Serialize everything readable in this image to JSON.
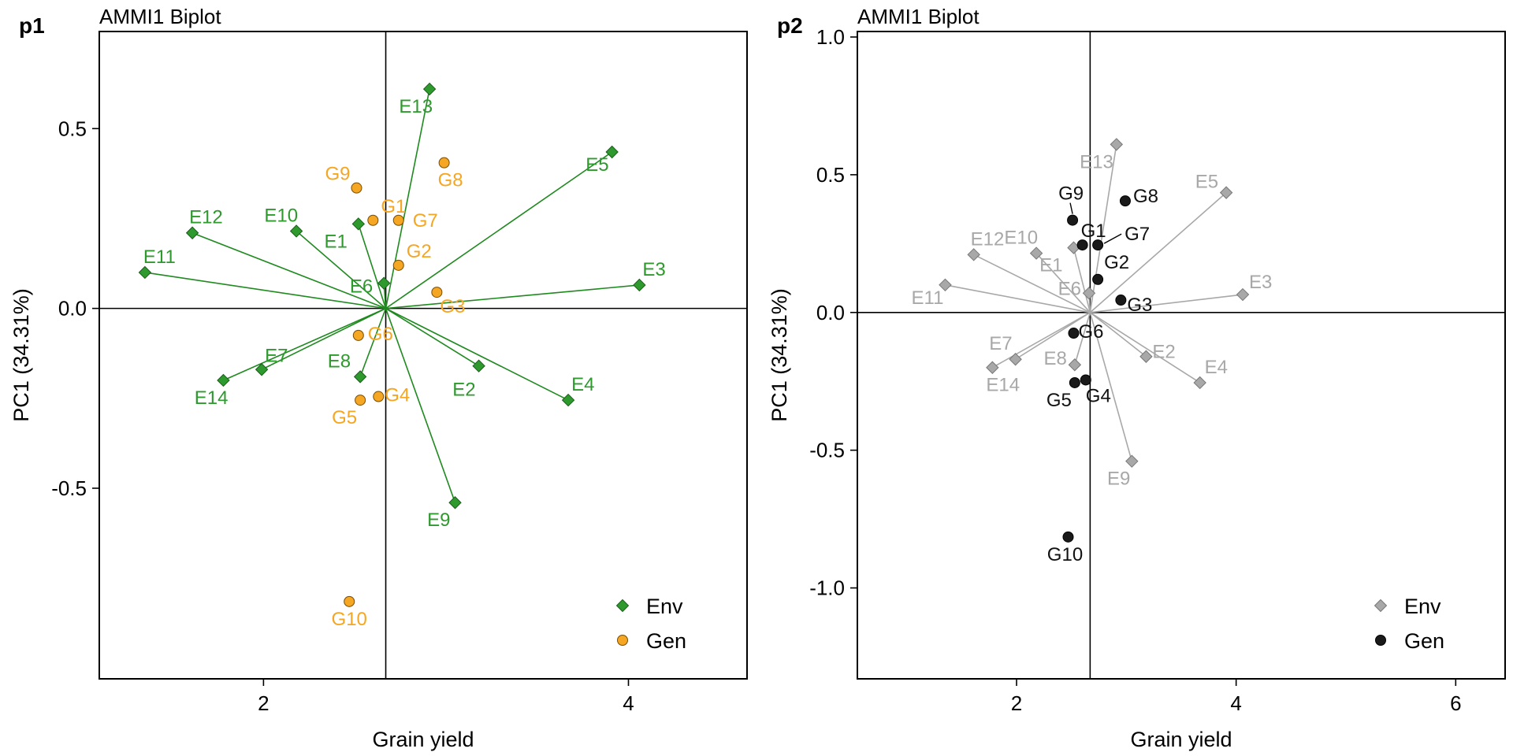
{
  "colors": {
    "p1_env": "#2E9A2E",
    "p1_env_line": "#1F8A1F",
    "p1_gen": "#F5A623",
    "p2_env": "#A8A8A8",
    "p2_env_line": "#A8A8A8",
    "p2_gen": "#1A1A1A",
    "axes": "#000000"
  },
  "panels": [
    {
      "tag": "p1",
      "title": "AMMI1 Biplot",
      "xlabel": "Grain yield",
      "ylabel": "PC1 (34.31%)",
      "legend": [
        "Env",
        "Gen"
      ],
      "legend_position": "bottom-right",
      "xlim": [
        1.1,
        4.65
      ],
      "ylim": [
        -1.03,
        0.77
      ],
      "xticks": [
        2,
        4
      ],
      "yticks": [
        -0.5,
        0.0,
        0.5
      ],
      "ytick_labels": [
        "-0.5",
        "0.0",
        "0.5"
      ],
      "center": [
        2.67,
        0.0
      ],
      "gen_label_color": "gen",
      "env": [
        {
          "label": "E1",
          "x": 2.52,
          "y": 0.235
        },
        {
          "label": "E2",
          "x": 3.18,
          "y": -0.16
        },
        {
          "label": "E3",
          "x": 4.06,
          "y": 0.065
        },
        {
          "label": "E4",
          "x": 3.67,
          "y": -0.255
        },
        {
          "label": "E5",
          "x": 3.91,
          "y": 0.435
        },
        {
          "label": "E6",
          "x": 2.66,
          "y": 0.07
        },
        {
          "label": "E7",
          "x": 1.99,
          "y": -0.17
        },
        {
          "label": "E8",
          "x": 2.53,
          "y": -0.19
        },
        {
          "label": "E9",
          "x": 3.05,
          "y": -0.54
        },
        {
          "label": "E10",
          "x": 2.18,
          "y": 0.215
        },
        {
          "label": "E11",
          "x": 1.35,
          "y": 0.1
        },
        {
          "label": "E12",
          "x": 1.61,
          "y": 0.21
        },
        {
          "label": "E13",
          "x": 2.91,
          "y": 0.61
        },
        {
          "label": "E14",
          "x": 1.78,
          "y": -0.2
        }
      ],
      "gen": [
        {
          "label": "G1",
          "x": 2.6,
          "y": 0.245
        },
        {
          "label": "G2",
          "x": 2.74,
          "y": 0.12
        },
        {
          "label": "G3",
          "x": 2.95,
          "y": 0.045
        },
        {
          "label": "G4",
          "x": 2.63,
          "y": -0.245
        },
        {
          "label": "G5",
          "x": 2.53,
          "y": -0.255
        },
        {
          "label": "G6",
          "x": 2.52,
          "y": -0.075
        },
        {
          "label": "G7",
          "x": 2.74,
          "y": 0.245
        },
        {
          "label": "G8",
          "x": 2.99,
          "y": 0.405
        },
        {
          "label": "G9",
          "x": 2.51,
          "y": 0.335
        },
        {
          "label": "G10",
          "x": 2.47,
          "y": -0.815
        }
      ]
    },
    {
      "tag": "p2",
      "title": "AMMI1 Biplot",
      "xlabel": "Grain yield",
      "ylabel": "PC1 (34.31%)",
      "legend": [
        "Env",
        "Gen"
      ],
      "legend_position": "bottom-right",
      "xlim": [
        0.55,
        6.45
      ],
      "ylim": [
        -1.33,
        1.02
      ],
      "xticks": [
        2,
        4,
        6
      ],
      "yticks": [
        -1.0,
        -0.5,
        0.0,
        0.5,
        1.0
      ],
      "ytick_labels": [
        "-1.0",
        "-0.5",
        "0.0",
        "0.5",
        "1.0"
      ],
      "center": [
        2.67,
        0.0
      ],
      "gen_label_color": "black",
      "env": [
        {
          "label": "E1",
          "x": 2.52,
          "y": 0.235
        },
        {
          "label": "E2",
          "x": 3.18,
          "y": -0.16
        },
        {
          "label": "E3",
          "x": 4.06,
          "y": 0.065
        },
        {
          "label": "E4",
          "x": 3.67,
          "y": -0.255
        },
        {
          "label": "E5",
          "x": 3.91,
          "y": 0.435
        },
        {
          "label": "E6",
          "x": 2.66,
          "y": 0.07
        },
        {
          "label": "E7",
          "x": 1.99,
          "y": -0.17
        },
        {
          "label": "E8",
          "x": 2.53,
          "y": -0.19
        },
        {
          "label": "E9",
          "x": 3.05,
          "y": -0.54
        },
        {
          "label": "E10",
          "x": 2.18,
          "y": 0.215
        },
        {
          "label": "E11",
          "x": 1.35,
          "y": 0.1
        },
        {
          "label": "E12",
          "x": 1.61,
          "y": 0.21
        },
        {
          "label": "E13",
          "x": 2.91,
          "y": 0.61
        },
        {
          "label": "E14",
          "x": 1.78,
          "y": -0.2
        }
      ],
      "gen": [
        {
          "label": "G1",
          "x": 2.6,
          "y": 0.245
        },
        {
          "label": "G2",
          "x": 2.74,
          "y": 0.12
        },
        {
          "label": "G3",
          "x": 2.95,
          "y": 0.045
        },
        {
          "label": "G4",
          "x": 2.63,
          "y": -0.245
        },
        {
          "label": "G5",
          "x": 2.53,
          "y": -0.255
        },
        {
          "label": "G6",
          "x": 2.52,
          "y": -0.075
        },
        {
          "label": "G7",
          "x": 2.74,
          "y": 0.245
        },
        {
          "label": "G8",
          "x": 2.99,
          "y": 0.405
        },
        {
          "label": "G9",
          "x": 2.51,
          "y": 0.335
        },
        {
          "label": "G10",
          "x": 2.47,
          "y": -0.815
        }
      ]
    }
  ],
  "chart_data": [
    {
      "type": "scatter",
      "title": "AMMI1 Biplot",
      "xlabel": "Grain yield",
      "ylabel": "PC1 (34.31%)",
      "xlim": [
        1.1,
        4.65
      ],
      "ylim": [
        -1.03,
        0.77
      ],
      "series": [
        {
          "name": "Env",
          "labels": [
            "E1",
            "E2",
            "E3",
            "E4",
            "E5",
            "E6",
            "E7",
            "E8",
            "E9",
            "E10",
            "E11",
            "E12",
            "E13",
            "E14"
          ],
          "x": [
            2.52,
            3.18,
            4.06,
            3.67,
            3.91,
            2.66,
            1.99,
            2.53,
            3.05,
            2.18,
            1.35,
            1.61,
            2.91,
            1.78
          ],
          "y": [
            0.235,
            -0.16,
            0.065,
            -0.255,
            0.435,
            0.07,
            -0.17,
            -0.19,
            -0.54,
            0.215,
            0.1,
            0.21,
            0.61,
            -0.2
          ]
        },
        {
          "name": "Gen",
          "labels": [
            "G1",
            "G2",
            "G3",
            "G4",
            "G5",
            "G6",
            "G7",
            "G8",
            "G9",
            "G10"
          ],
          "x": [
            2.6,
            2.74,
            2.95,
            2.63,
            2.53,
            2.52,
            2.74,
            2.99,
            2.51,
            2.47
          ],
          "y": [
            0.245,
            0.12,
            0.045,
            -0.245,
            -0.255,
            -0.075,
            0.245,
            0.405,
            0.335,
            -0.815
          ]
        }
      ]
    },
    {
      "type": "scatter",
      "title": "AMMI1 Biplot",
      "xlabel": "Grain yield",
      "ylabel": "PC1 (34.31%)",
      "xlim": [
        0.55,
        6.45
      ],
      "ylim": [
        -1.33,
        1.02
      ],
      "series": [
        {
          "name": "Env",
          "labels": [
            "E1",
            "E2",
            "E3",
            "E4",
            "E5",
            "E6",
            "E7",
            "E8",
            "E9",
            "E10",
            "E11",
            "E12",
            "E13",
            "E14"
          ],
          "x": [
            2.52,
            3.18,
            4.06,
            3.67,
            3.91,
            2.66,
            1.99,
            2.53,
            3.05,
            2.18,
            1.35,
            1.61,
            2.91,
            1.78
          ],
          "y": [
            0.235,
            -0.16,
            0.065,
            -0.255,
            0.435,
            0.07,
            -0.17,
            -0.19,
            -0.54,
            0.215,
            0.1,
            0.21,
            0.61,
            -0.2
          ]
        },
        {
          "name": "Gen",
          "labels": [
            "G1",
            "G2",
            "G3",
            "G4",
            "G5",
            "G6",
            "G7",
            "G8",
            "G9",
            "G10"
          ],
          "x": [
            2.6,
            2.74,
            2.95,
            2.63,
            2.53,
            2.52,
            2.74,
            2.99,
            2.51,
            2.47
          ],
          "y": [
            0.245,
            0.12,
            0.045,
            -0.245,
            -0.255,
            -0.075,
            0.245,
            0.405,
            0.335,
            -0.815
          ]
        }
      ]
    }
  ]
}
